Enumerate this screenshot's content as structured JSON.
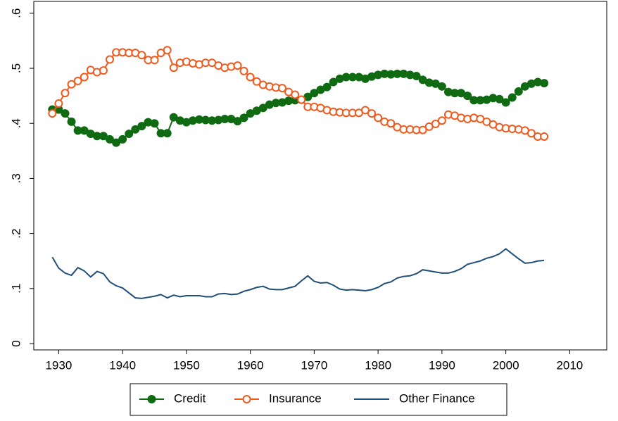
{
  "chart_data": {
    "type": "line",
    "x": [
      1929,
      1930,
      1931,
      1932,
      1933,
      1934,
      1935,
      1936,
      1937,
      1938,
      1939,
      1940,
      1941,
      1942,
      1943,
      1944,
      1945,
      1946,
      1947,
      1948,
      1949,
      1950,
      1951,
      1952,
      1953,
      1954,
      1955,
      1956,
      1957,
      1958,
      1959,
      1960,
      1961,
      1962,
      1963,
      1964,
      1965,
      1966,
      1967,
      1968,
      1969,
      1970,
      1971,
      1972,
      1973,
      1974,
      1975,
      1976,
      1977,
      1978,
      1979,
      1980,
      1981,
      1982,
      1983,
      1984,
      1985,
      1986,
      1987,
      1988,
      1989,
      1990,
      1991,
      1992,
      1993,
      1994,
      1995,
      1996,
      1997,
      1998,
      1999,
      2000,
      2001,
      2002,
      2003,
      2004,
      2005,
      2006
    ],
    "series": [
      {
        "name": "Credit",
        "color": "#0f6a12",
        "marker": "circle-filled",
        "values": [
          0.425,
          0.425,
          0.418,
          0.403,
          0.387,
          0.387,
          0.381,
          0.377,
          0.377,
          0.371,
          0.365,
          0.371,
          0.381,
          0.389,
          0.395,
          0.402,
          0.4,
          0.382,
          0.382,
          0.411,
          0.405,
          0.402,
          0.405,
          0.407,
          0.406,
          0.405,
          0.406,
          0.408,
          0.408,
          0.404,
          0.41,
          0.418,
          0.423,
          0.428,
          0.434,
          0.437,
          0.438,
          0.441,
          0.442,
          0.443,
          0.448,
          0.455,
          0.461,
          0.466,
          0.475,
          0.481,
          0.484,
          0.484,
          0.484,
          0.481,
          0.485,
          0.488,
          0.49,
          0.489,
          0.49,
          0.49,
          0.488,
          0.486,
          0.479,
          0.474,
          0.472,
          0.467,
          0.457,
          0.455,
          0.455,
          0.45,
          0.442,
          0.442,
          0.443,
          0.446,
          0.444,
          0.438,
          0.447,
          0.458,
          0.467,
          0.472,
          0.475,
          0.473
        ]
      },
      {
        "name": "Insurance",
        "color": "#f05a1e",
        "marker": "circle-open",
        "values": [
          0.418,
          0.436,
          0.455,
          0.471,
          0.477,
          0.484,
          0.497,
          0.493,
          0.496,
          0.516,
          0.529,
          0.529,
          0.528,
          0.528,
          0.524,
          0.515,
          0.515,
          0.528,
          0.533,
          0.501,
          0.51,
          0.512,
          0.509,
          0.507,
          0.51,
          0.51,
          0.505,
          0.501,
          0.503,
          0.505,
          0.495,
          0.484,
          0.476,
          0.47,
          0.467,
          0.465,
          0.464,
          0.457,
          0.452,
          0.443,
          0.43,
          0.43,
          0.428,
          0.424,
          0.421,
          0.42,
          0.419,
          0.419,
          0.419,
          0.424,
          0.418,
          0.41,
          0.403,
          0.4,
          0.393,
          0.389,
          0.389,
          0.388,
          0.388,
          0.394,
          0.399,
          0.405,
          0.416,
          0.414,
          0.41,
          0.408,
          0.41,
          0.408,
          0.403,
          0.398,
          0.393,
          0.391,
          0.39,
          0.389,
          0.387,
          0.382,
          0.376,
          0.376
        ]
      },
      {
        "name": "Other Finance",
        "color": "#1f4e79",
        "values": [
          0.157,
          0.137,
          0.128,
          0.124,
          0.138,
          0.132,
          0.121,
          0.131,
          0.127,
          0.112,
          0.105,
          0.101,
          0.092,
          0.083,
          0.082,
          0.084,
          0.086,
          0.089,
          0.083,
          0.088,
          0.085,
          0.087,
          0.087,
          0.087,
          0.085,
          0.085,
          0.09,
          0.091,
          0.089,
          0.09,
          0.095,
          0.098,
          0.102,
          0.104,
          0.099,
          0.098,
          0.098,
          0.101,
          0.104,
          0.114,
          0.123,
          0.113,
          0.11,
          0.111,
          0.106,
          0.099,
          0.097,
          0.098,
          0.097,
          0.096,
          0.098,
          0.102,
          0.109,
          0.112,
          0.119,
          0.122,
          0.123,
          0.127,
          0.134,
          0.132,
          0.13,
          0.128,
          0.128,
          0.131,
          0.136,
          0.144,
          0.147,
          0.15,
          0.155,
          0.158,
          0.163,
          0.172,
          0.163,
          0.154,
          0.146,
          0.147,
          0.15,
          0.151
        ]
      }
    ],
    "xlim": [
      1926.1,
      2015.8
    ],
    "xticks": [
      1930,
      1940,
      1950,
      1960,
      1970,
      1980,
      1990,
      2000,
      2010
    ],
    "ylim": [
      -0.0115,
      0.6215
    ],
    "yticks": [
      0,
      {
        "value": 0.1,
        "label": ".1"
      },
      {
        "value": 0.2,
        "label": ".2"
      },
      {
        "value": 0.3,
        "label": ".3"
      },
      {
        "value": 0.4,
        "label": ".4"
      },
      {
        "value": 0.5,
        "label": ".5"
      },
      {
        "value": 0.6,
        "label": ".6"
      }
    ],
    "legend": "bottom"
  }
}
